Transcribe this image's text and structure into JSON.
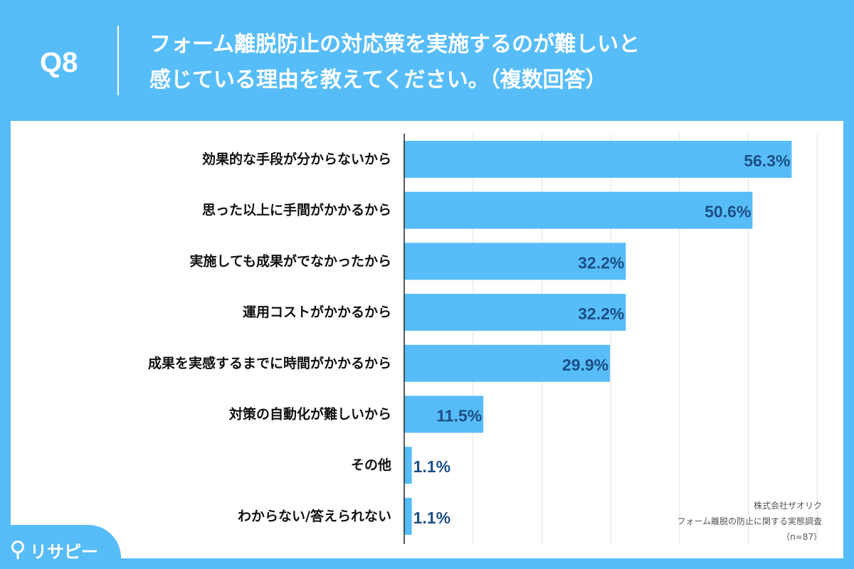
{
  "header": {
    "q_label": "Q8",
    "question_line1": "フォーム離脱防止の対応策を実施するのが難しいと",
    "question_line2": "感じている理由を教えてください。（複数回答）"
  },
  "chart_data": {
    "type": "bar",
    "orientation": "horizontal",
    "categories": [
      "効果的な手段が分からないから",
      "思った以上に手間がかかるから",
      "実施しても成果がでなかったから",
      "運用コストがかかるから",
      "成果を実感するまでに時間がかかるから",
      "対策の自動化が難しいから",
      "その他",
      "わからない/答えられない"
    ],
    "values": [
      56.3,
      50.6,
      32.2,
      32.2,
      29.9,
      11.5,
      1.1,
      1.1
    ],
    "value_labels": [
      "56.3%",
      "50.6%",
      "32.2%",
      "32.2%",
      "29.9%",
      "11.5%",
      "1.1%",
      "1.1%"
    ],
    "xlim": [
      0,
      60
    ],
    "grid": true,
    "bar_color": "#57bdf9",
    "label_color": "#1c4f84"
  },
  "source": {
    "company": "株式会社ザオリク",
    "survey": "フォーム離脱の防止に関する実態調査",
    "sample": "（n=87）"
  },
  "logo": {
    "text": "リサピー",
    "icon": "pin-icon"
  },
  "colors": {
    "brand": "#57bdf9",
    "panel": "#ffffff"
  }
}
